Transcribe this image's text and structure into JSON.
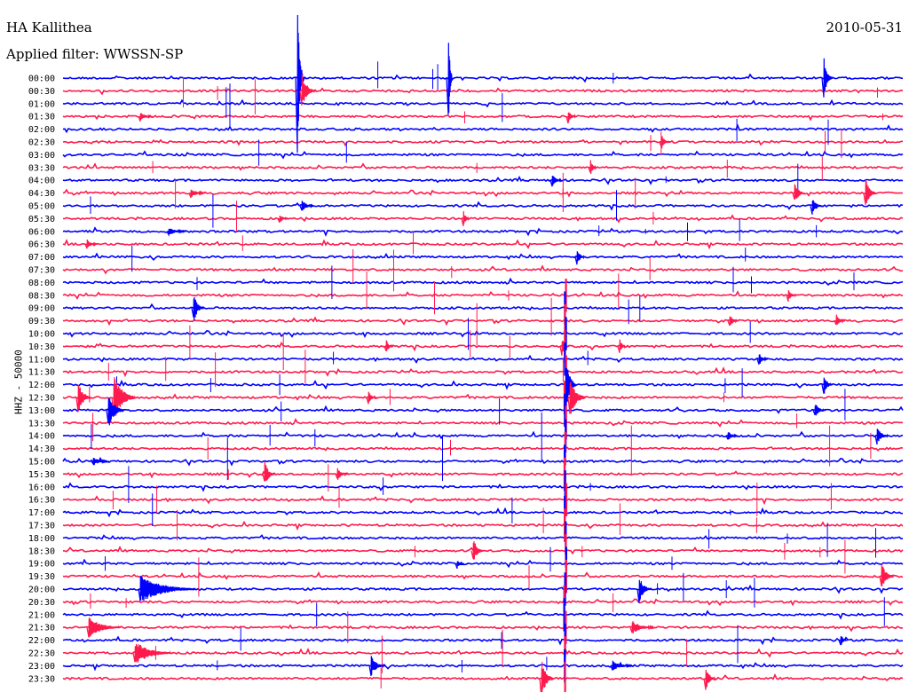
{
  "chart_data": {
    "type": "line",
    "title": "HA Kallithea",
    "subtitle": "Applied filter: WWSSN-SP",
    "date": "2010-05-31",
    "ylabel": "HHZ - 50000",
    "row_labels": [
      "00:00",
      "00:30",
      "01:00",
      "01:30",
      "02:00",
      "02:30",
      "03:00",
      "03:30",
      "04:00",
      "04:30",
      "05:00",
      "05:30",
      "06:00",
      "06:30",
      "07:00",
      "07:30",
      "08:00",
      "08:30",
      "09:00",
      "09:30",
      "10:00",
      "10:30",
      "11:00",
      "11:30",
      "12:00",
      "12:30",
      "13:00",
      "13:30",
      "14:00",
      "14:30",
      "15:00",
      "15:30",
      "16:00",
      "16:30",
      "17:00",
      "17:30",
      "18:00",
      "18:30",
      "19:00",
      "19:30",
      "20:00",
      "20:30",
      "21:00",
      "21:30",
      "22:00",
      "22:30",
      "23:00",
      "23:30"
    ],
    "series_colors": [
      "#0000ff",
      "#ff1a4d"
    ],
    "events": [
      {
        "row": 0,
        "x": 335,
        "amp": 90,
        "dur": 6
      },
      {
        "row": 0,
        "x": 505,
        "amp": 70,
        "dur": 2
      },
      {
        "row": 0,
        "x": 928,
        "amp": 25,
        "dur": 8
      },
      {
        "row": 1,
        "x": 340,
        "amp": 20,
        "dur": 14
      },
      {
        "row": 3,
        "x": 158,
        "amp": 6,
        "dur": 12
      },
      {
        "row": 3,
        "x": 640,
        "amp": 8,
        "dur": 8
      },
      {
        "row": 5,
        "x": 745,
        "amp": 10,
        "dur": 8
      },
      {
        "row": 7,
        "x": 665,
        "amp": 10,
        "dur": 6
      },
      {
        "row": 8,
        "x": 622,
        "amp": 8,
        "dur": 10
      },
      {
        "row": 9,
        "x": 215,
        "amp": 6,
        "dur": 14
      },
      {
        "row": 9,
        "x": 895,
        "amp": 14,
        "dur": 10
      },
      {
        "row": 9,
        "x": 975,
        "amp": 18,
        "dur": 10
      },
      {
        "row": 10,
        "x": 340,
        "amp": 8,
        "dur": 12
      },
      {
        "row": 10,
        "x": 915,
        "amp": 12,
        "dur": 10
      },
      {
        "row": 11,
        "x": 315,
        "amp": 6,
        "dur": 8
      },
      {
        "row": 11,
        "x": 522,
        "amp": 10,
        "dur": 6
      },
      {
        "row": 12,
        "x": 190,
        "amp": 5,
        "dur": 18
      },
      {
        "row": 13,
        "x": 98,
        "amp": 6,
        "dur": 10
      },
      {
        "row": 14,
        "x": 650,
        "amp": 10,
        "dur": 8
      },
      {
        "row": 17,
        "x": 888,
        "amp": 8,
        "dur": 8
      },
      {
        "row": 18,
        "x": 218,
        "amp": 18,
        "dur": 10
      },
      {
        "row": 19,
        "x": 822,
        "amp": 8,
        "dur": 8
      },
      {
        "row": 19,
        "x": 942,
        "amp": 8,
        "dur": 8
      },
      {
        "row": 21,
        "x": 435,
        "amp": 10,
        "dur": 6
      },
      {
        "row": 21,
        "x": 633,
        "amp": 12,
        "dur": 6
      },
      {
        "row": 21,
        "x": 698,
        "amp": 10,
        "dur": 6
      },
      {
        "row": 22,
        "x": 855,
        "amp": 8,
        "dur": 8
      },
      {
        "row": 24,
        "x": 638,
        "amp": 30,
        "dur": 10
      },
      {
        "row": 24,
        "x": 928,
        "amp": 14,
        "dur": 8
      },
      {
        "row": 25,
        "x": 88,
        "amp": 18,
        "dur": 14
      },
      {
        "row": 25,
        "x": 128,
        "amp": 26,
        "dur": 24
      },
      {
        "row": 25,
        "x": 415,
        "amp": 8,
        "dur": 8
      },
      {
        "row": 25,
        "x": 642,
        "amp": 24,
        "dur": 16
      },
      {
        "row": 26,
        "x": 122,
        "amp": 22,
        "dur": 16
      },
      {
        "row": 26,
        "x": 918,
        "amp": 10,
        "dur": 10
      },
      {
        "row": 28,
        "x": 820,
        "amp": 6,
        "dur": 10
      },
      {
        "row": 28,
        "x": 988,
        "amp": 10,
        "dur": 12
      },
      {
        "row": 30,
        "x": 105,
        "amp": 5,
        "dur": 16
      },
      {
        "row": 31,
        "x": 298,
        "amp": 16,
        "dur": 10
      },
      {
        "row": 31,
        "x": 380,
        "amp": 8,
        "dur": 10
      },
      {
        "row": 37,
        "x": 533,
        "amp": 16,
        "dur": 10
      },
      {
        "row": 38,
        "x": 515,
        "amp": 6,
        "dur": 6
      },
      {
        "row": 39,
        "x": 993,
        "amp": 16,
        "dur": 12
      },
      {
        "row": 40,
        "x": 158,
        "amp": 16,
        "dur": 60
      },
      {
        "row": 40,
        "x": 720,
        "amp": 16,
        "dur": 12
      },
      {
        "row": 43,
        "x": 100,
        "amp": 12,
        "dur": 34
      },
      {
        "row": 43,
        "x": 712,
        "amp": 8,
        "dur": 24
      },
      {
        "row": 44,
        "x": 947,
        "amp": 10,
        "dur": 6
      },
      {
        "row": 45,
        "x": 152,
        "amp": 14,
        "dur": 40
      },
      {
        "row": 46,
        "x": 418,
        "amp": 12,
        "dur": 14
      },
      {
        "row": 46,
        "x": 690,
        "amp": 6,
        "dur": 22
      },
      {
        "row": 47,
        "x": 610,
        "amp": 24,
        "dur": 12
      },
      {
        "row": 47,
        "x": 795,
        "amp": 14,
        "dur": 10
      }
    ],
    "big_quake": {
      "x": 637,
      "row_start": 17,
      "row_end": 47
    },
    "grid": false,
    "legend": "none"
  }
}
